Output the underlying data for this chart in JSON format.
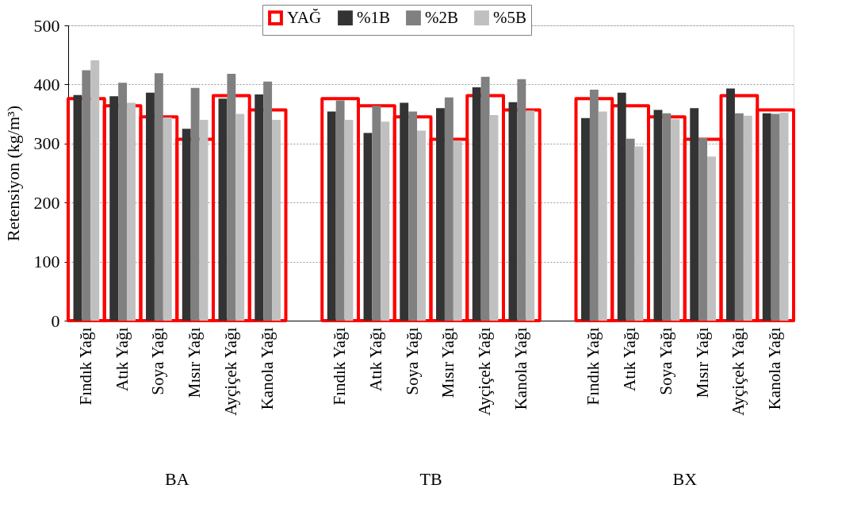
{
  "chart_data": {
    "type": "bar",
    "ylabel": "Retensiyon (kg/m³)",
    "categories": [
      "Fındık Yağı",
      "Atık Yağı",
      "Soya Yağı",
      "Mısır Yağı",
      "Ayçiçek Yağı",
      "Kanola Yağı",
      null,
      "Fındık Yağı",
      "Atık Yağı",
      "Soya Yağı",
      "Mısır Yağı",
      "Ayçiçek Yağı",
      "Kanola Yağı",
      null,
      "Fındık Yağı",
      "Atık Yağı",
      "Soya Yağı",
      "Mısır Yağı",
      "Ayçiçek Yağı",
      "Kanola Yağı"
    ],
    "series": [
      {
        "name": "YAĞ",
        "color": "#ff0000",
        "values": [
          376,
          364,
          345,
          307,
          381,
          357,
          null,
          376,
          364,
          345,
          307,
          381,
          357,
          null,
          376,
          364,
          345,
          307,
          381,
          357
        ]
      },
      {
        "name": "%1B",
        "color": "#333333",
        "values": [
          382,
          380,
          386,
          325,
          376,
          383,
          null,
          354,
          318,
          369,
          360,
          395,
          370,
          null,
          343,
          386,
          357,
          360,
          393,
          351
        ]
      },
      {
        "name": "%2B",
        "color": "#808080",
        "values": [
          424,
          403,
          419,
          394,
          418,
          405,
          null,
          373,
          364,
          354,
          378,
          413,
          409,
          null,
          391,
          308,
          351,
          309,
          351,
          350
        ]
      },
      {
        "name": "%5B",
        "color": "#c0c0c0",
        "values": [
          441,
          369,
          344,
          340,
          350,
          340,
          null,
          340,
          337,
          322,
          305,
          348,
          356,
          null,
          354,
          295,
          341,
          278,
          347,
          352
        ]
      }
    ],
    "annotations": [
      "BA",
      "TB",
      "BX"
    ],
    "ylim": [
      0,
      500
    ],
    "yticks": [
      0,
      100,
      200,
      300,
      400,
      500
    ],
    "grid": "y",
    "legend": "top"
  }
}
